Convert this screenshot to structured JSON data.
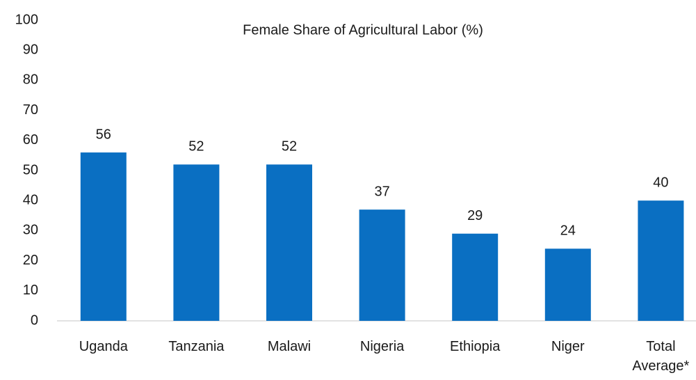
{
  "chart_data": {
    "type": "bar",
    "title": "Female Share of Agricultural Labor (%)",
    "categories": [
      "Uganda",
      "Tanzania",
      "Malawi",
      "Nigeria",
      "Ethiopia",
      "Niger",
      "Total Average*"
    ],
    "values": [
      56,
      52,
      52,
      37,
      29,
      24,
      40
    ],
    "color": "#0a6fc2",
    "ylim": [
      0,
      100
    ],
    "yticks": [
      0,
      10,
      20,
      30,
      40,
      50,
      60,
      70,
      80,
      90,
      100
    ],
    "grid": false
  }
}
